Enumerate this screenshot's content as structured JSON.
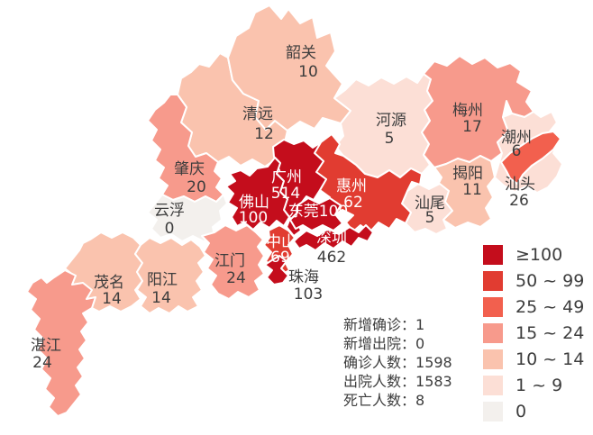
{
  "palette": {
    "gte100": "#c40d1c",
    "50_99": "#e13c31",
    "25_49": "#f2604e",
    "15_24": "#f79a8c",
    "10_14": "#fac3ae",
    "1_9": "#fcdfd6",
    "zero": "#f3f0ed",
    "border": "#ffffff",
    "label_dark": "#3d3d3d",
    "label_light": "#ffffff"
  },
  "regions": [
    {
      "id": "qingyuan",
      "name": "清远",
      "value": "12",
      "level": "10_14",
      "text": "dark"
    },
    {
      "id": "shaoguan",
      "name": "韶关",
      "value": "10",
      "level": "10_14",
      "text": "dark"
    },
    {
      "id": "heyuan",
      "name": "河源",
      "value": "5",
      "level": "1_9",
      "text": "dark"
    },
    {
      "id": "meizhou",
      "name": "梅州",
      "value": "17",
      "level": "15_24",
      "text": "dark"
    },
    {
      "id": "chaozhou",
      "name": "潮州",
      "value": "6",
      "level": "1_9",
      "text": "dark"
    },
    {
      "id": "jieyang",
      "name": "揭阳",
      "value": "11",
      "level": "10_14",
      "text": "dark"
    },
    {
      "id": "shanwei",
      "name": "汕尾",
      "value": "5",
      "level": "1_9",
      "text": "dark"
    },
    {
      "id": "shantou",
      "name": "汕头",
      "value": "26",
      "level": "25_49",
      "text": "dark"
    },
    {
      "id": "huizhou",
      "name": "惠州",
      "value": "62",
      "level": "50_99",
      "text": "light"
    },
    {
      "id": "zhaoqing",
      "name": "肇庆",
      "value": "20",
      "level": "15_24",
      "text": "dark"
    },
    {
      "id": "yunfu",
      "name": "云浮",
      "value": "0",
      "level": "zero",
      "text": "dark"
    },
    {
      "id": "guangzhou",
      "name": "广州",
      "value": "514",
      "level": "gte100",
      "text": "light"
    },
    {
      "id": "foshan",
      "name": "佛山",
      "value": "100",
      "level": "gte100",
      "text": "light"
    },
    {
      "id": "dongguan",
      "name": "东莞",
      "value": "100",
      "level": "gte100",
      "text": "light",
      "inline": true
    },
    {
      "id": "shenzhen",
      "name": "深圳",
      "value": "462",
      "level": "gte100",
      "text": "light",
      "value_text": "dark"
    },
    {
      "id": "zhongshan",
      "name": "中山",
      "value": "69",
      "level": "50_99",
      "text": "light"
    },
    {
      "id": "zhuhai",
      "name": "珠海",
      "value": "103",
      "level": "gte100",
      "text": "dark"
    },
    {
      "id": "jiangmen",
      "name": "江门",
      "value": "24",
      "level": "15_24",
      "text": "dark"
    },
    {
      "id": "maoming",
      "name": "茂名",
      "value": "14",
      "level": "10_14",
      "text": "dark"
    },
    {
      "id": "yangjiang",
      "name": "阳江",
      "value": "14",
      "level": "10_14",
      "text": "dark"
    },
    {
      "id": "zhanjiang",
      "name": "湛江",
      "value": "24",
      "level": "15_24",
      "text": "dark"
    }
  ],
  "legend": {
    "items": [
      {
        "label": "≥100",
        "level": "gte100"
      },
      {
        "label": "50 ~ 99",
        "level": "50_99"
      },
      {
        "label": "25 ~ 49",
        "level": "25_49"
      },
      {
        "label": "15 ~ 24",
        "level": "15_24"
      },
      {
        "label": "10 ~ 14",
        "level": "10_14"
      },
      {
        "label": "1 ~ 9",
        "level": "1_9"
      },
      {
        "label": "0",
        "level": "zero"
      }
    ]
  },
  "stats": {
    "separator": "：",
    "lines": [
      {
        "label": "新增确诊",
        "value": "1"
      },
      {
        "label": "新增出院",
        "value": "0"
      },
      {
        "label": "确诊人数",
        "value": "1598"
      },
      {
        "label": "出院人数",
        "value": "1583"
      },
      {
        "label": "死亡人数",
        "value": "8"
      }
    ]
  }
}
